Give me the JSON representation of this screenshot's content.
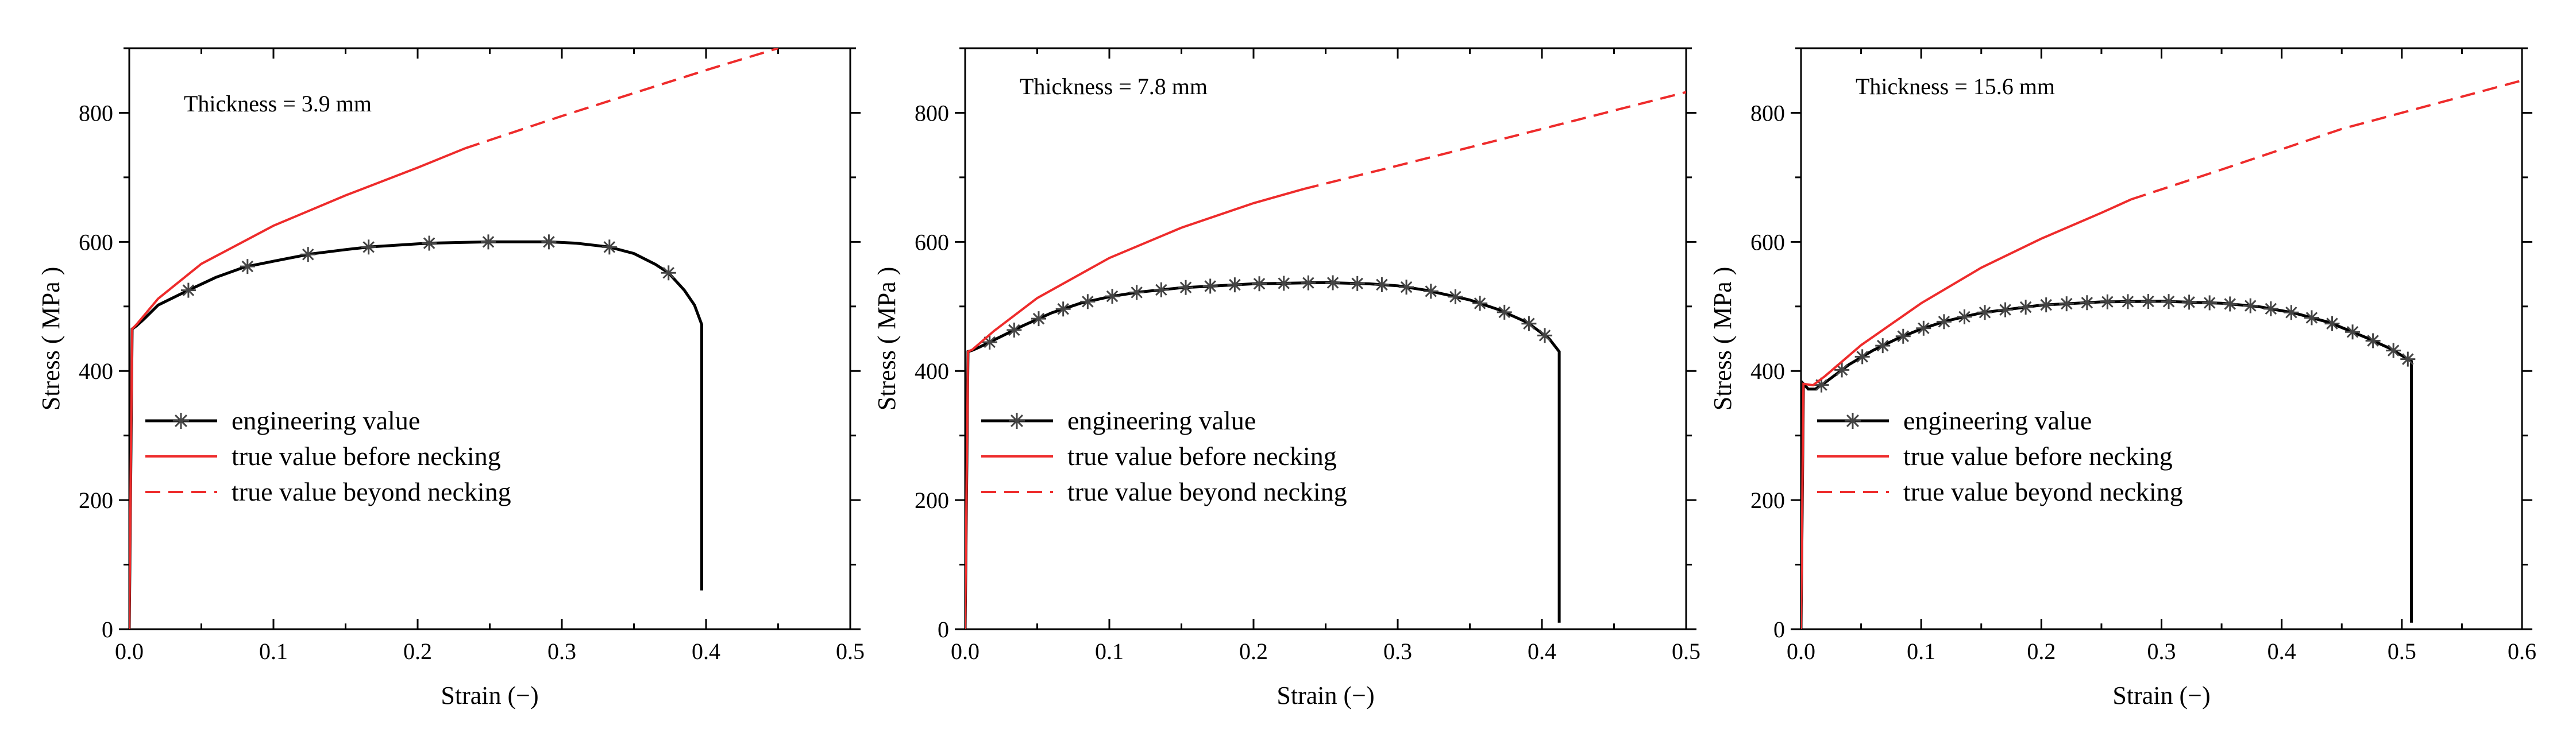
{
  "colors": {
    "engineering": "#000000",
    "true_value": "#ee2b2b",
    "axis": "#000000"
  },
  "legend": {
    "engineering": "engineering value",
    "true_before": "true value before necking",
    "true_beyond": "true value beyond necking"
  },
  "chart_data": [
    {
      "type": "line",
      "annotation": "Thickness = 3.9 mm",
      "xlabel": "Strain (−)",
      "ylabel": "Stress ( MPa )",
      "xlim": [
        0,
        0.5
      ],
      "ylim": [
        0,
        900
      ],
      "xticks": [
        "0.0",
        "0.1",
        "0.2",
        "0.3",
        "0.4",
        "0.5"
      ],
      "yticks": [
        "0",
        "200",
        "400",
        "600",
        "800"
      ],
      "grid": false,
      "legend_position": "lower-left",
      "series": [
        {
          "name": "engineering value",
          "style": "solid-with-asterisk-markers",
          "points": [
            [
              0,
              0
            ],
            [
              0.002,
              465
            ],
            [
              0.005,
              470
            ],
            [
              0.01,
              480
            ],
            [
              0.02,
              502
            ],
            [
              0.04,
              524
            ],
            [
              0.06,
              545
            ],
            [
              0.08,
              561
            ],
            [
              0.1,
              570
            ],
            [
              0.125,
              581
            ],
            [
              0.15,
              588
            ],
            [
              0.166,
              592
            ],
            [
              0.2,
              597
            ],
            [
              0.208,
              598
            ],
            [
              0.25,
              600
            ],
            [
              0.291,
              600
            ],
            [
              0.31,
              598
            ],
            [
              0.333,
              592
            ],
            [
              0.35,
              582
            ],
            [
              0.365,
              565
            ],
            [
              0.374,
              552
            ],
            [
              0.385,
              525
            ],
            [
              0.392,
              502
            ],
            [
              0.397,
              472
            ],
            [
              0.397,
              60
            ]
          ],
          "markers_x": [
            0.041,
            0.082,
            0.124,
            0.166,
            0.208,
            0.249,
            0.291,
            0.333,
            0.374
          ]
        },
        {
          "name": "true value before necking",
          "style": "solid",
          "points": [
            [
              0,
              0
            ],
            [
              0.002,
              465
            ],
            [
              0.005,
              472
            ],
            [
              0.02,
              512
            ],
            [
              0.05,
              566
            ],
            [
              0.1,
              625
            ],
            [
              0.15,
              672
            ],
            [
              0.2,
              715
            ],
            [
              0.233,
              745
            ]
          ]
        },
        {
          "name": "true value beyond necking",
          "style": "dashed",
          "points": [
            [
              0.233,
              745
            ],
            [
              0.3,
              795
            ],
            [
              0.4,
              866
            ],
            [
              0.45,
              900
            ]
          ]
        }
      ]
    },
    {
      "type": "line",
      "annotation": "Thickness = 7.8 mm",
      "xlabel": "Strain (−)",
      "ylabel": "Stress ( MPa )",
      "xlim": [
        0,
        0.5
      ],
      "ylim": [
        0,
        900
      ],
      "xticks": [
        "0.0",
        "0.1",
        "0.2",
        "0.3",
        "0.4",
        "0.5"
      ],
      "yticks": [
        "0",
        "200",
        "400",
        "600",
        "800"
      ],
      "grid": false,
      "legend_position": "lower-left",
      "series": [
        {
          "name": "engineering value",
          "style": "solid-with-asterisk-markers",
          "points": [
            [
              0,
              0
            ],
            [
              0.002,
              430
            ],
            [
              0.005,
              432
            ],
            [
              0.01,
              437
            ],
            [
              0.02,
              448
            ],
            [
              0.04,
              470
            ],
            [
              0.06,
              490
            ],
            [
              0.08,
              505
            ],
            [
              0.1,
              515
            ],
            [
              0.12,
              522
            ],
            [
              0.15,
              529
            ],
            [
              0.2,
              535
            ],
            [
              0.25,
              537
            ],
            [
              0.28,
              535
            ],
            [
              0.3,
              532
            ],
            [
              0.32,
              525
            ],
            [
              0.35,
              510
            ],
            [
              0.37,
              495
            ],
            [
              0.39,
              475
            ],
            [
              0.405,
              450
            ],
            [
              0.412,
              430
            ],
            [
              0.412,
              10
            ]
          ],
          "markers_x": [
            0.017,
            0.034,
            0.051,
            0.068,
            0.085,
            0.102,
            0.119,
            0.136,
            0.153,
            0.17,
            0.187,
            0.204,
            0.221,
            0.238,
            0.255,
            0.272,
            0.289,
            0.306,
            0.323,
            0.34,
            0.357,
            0.374,
            0.391,
            0.402
          ]
        },
        {
          "name": "true value before necking",
          "style": "solid",
          "points": [
            [
              0,
              0
            ],
            [
              0.002,
              430
            ],
            [
              0.005,
              433
            ],
            [
              0.02,
              462
            ],
            [
              0.05,
              513
            ],
            [
              0.1,
              575
            ],
            [
              0.15,
              622
            ],
            [
              0.2,
              660
            ],
            [
              0.235,
              682
            ]
          ]
        },
        {
          "name": "true value beyond necking",
          "style": "dashed",
          "points": [
            [
              0.235,
              682
            ],
            [
              0.3,
              718
            ],
            [
              0.4,
              775
            ],
            [
              0.5,
              832
            ]
          ]
        }
      ]
    },
    {
      "type": "line",
      "annotation": "Thickness = 15.6 mm",
      "xlabel": "Strain (−)",
      "ylabel": "Stress ( MPa )",
      "xlim": [
        0,
        0.6
      ],
      "ylim": [
        0,
        900
      ],
      "xticks": [
        "0.0",
        "0.1",
        "0.2",
        "0.3",
        "0.4",
        "0.5",
        "0.6"
      ],
      "yticks": [
        "0",
        "200",
        "400",
        "600",
        "800"
      ],
      "grid": false,
      "legend_position": "lower-left",
      "series": [
        {
          "name": "engineering value",
          "style": "solid-with-asterisk-markers",
          "points": [
            [
              0,
              0
            ],
            [
              0.002,
              380
            ],
            [
              0.006,
              372
            ],
            [
              0.012,
              372
            ],
            [
              0.02,
              382
            ],
            [
              0.04,
              410
            ],
            [
              0.06,
              432
            ],
            [
              0.08,
              450
            ],
            [
              0.1,
              465
            ],
            [
              0.12,
              477
            ],
            [
              0.15,
              490
            ],
            [
              0.2,
              502
            ],
            [
              0.25,
              507
            ],
            [
              0.3,
              508
            ],
            [
              0.35,
              505
            ],
            [
              0.38,
              500
            ],
            [
              0.41,
              490
            ],
            [
              0.44,
              475
            ],
            [
              0.47,
              452
            ],
            [
              0.49,
              435
            ],
            [
              0.508,
              415
            ],
            [
              0.508,
              10
            ]
          ],
          "markers_x": [
            0.017,
            0.034,
            0.051,
            0.068,
            0.085,
            0.102,
            0.119,
            0.136,
            0.153,
            0.17,
            0.187,
            0.204,
            0.221,
            0.238,
            0.255,
            0.272,
            0.289,
            0.306,
            0.323,
            0.34,
            0.357,
            0.374,
            0.391,
            0.408,
            0.425,
            0.442,
            0.459,
            0.476,
            0.493,
            0.505
          ]
        },
        {
          "name": "true value before necking",
          "style": "solid",
          "points": [
            [
              0,
              0
            ],
            [
              0.002,
              380
            ],
            [
              0.01,
              378
            ],
            [
              0.02,
              392
            ],
            [
              0.05,
              440
            ],
            [
              0.1,
              505
            ],
            [
              0.15,
              560
            ],
            [
              0.2,
              605
            ],
            [
              0.25,
              645
            ],
            [
              0.275,
              666
            ]
          ]
        },
        {
          "name": "true value beyond necking",
          "style": "dashed",
          "points": [
            [
              0.275,
              666
            ],
            [
              0.35,
              712
            ],
            [
              0.45,
              775
            ],
            [
              0.6,
              850
            ]
          ]
        }
      ]
    }
  ]
}
